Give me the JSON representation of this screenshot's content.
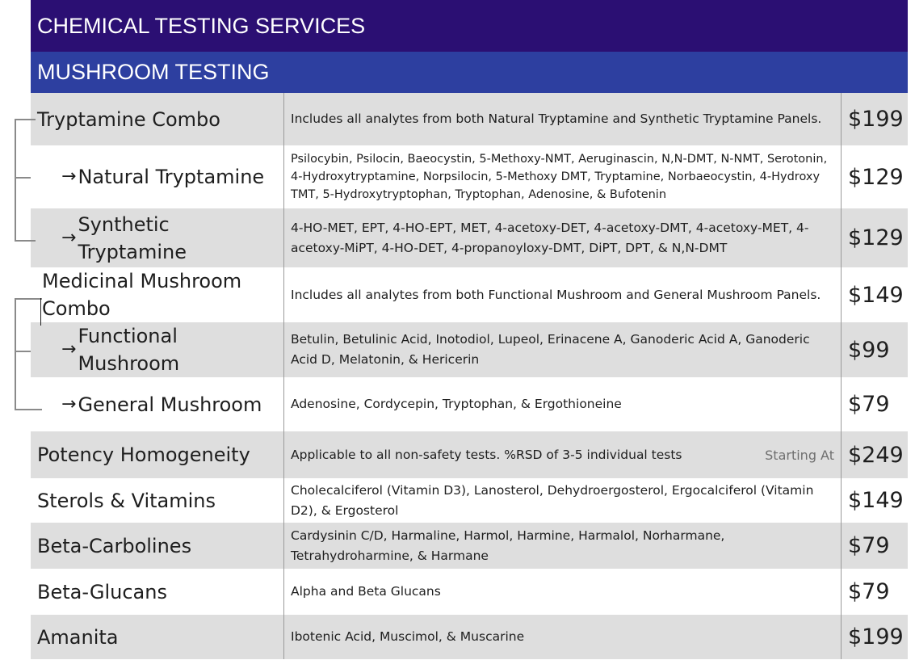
{
  "header": {
    "title": "CHEMICAL TESTING SERVICES",
    "subtitle": "MUSHROOM TESTING"
  },
  "arrow_glyph": "→",
  "rows": [
    {
      "name": "Tryptamine Combo",
      "desc": "Includes all analytes from both Natural Tryptamine and Synthetic Tryptamine Panels.",
      "price": "$199"
    },
    {
      "name": "Natural Tryptamine",
      "desc": "Psilocybin, Psilocin, Baeocystin, 5-Methoxy-NMT, Aeruginascin, N,N-DMT, N-NMT, Serotonin, 4-Hydroxytryptamine, Norpsilocin, 5-Methoxy DMT, Tryptamine, Norbaeocystin, 4-Hydroxy TMT, 5-Hydroxytryptophan, Tryptophan, Adenosine, & Bufotenin",
      "price": "$129"
    },
    {
      "name": "Synthetic Tryptamine",
      "desc": "4-HO-MET, EPT, 4-HO-EPT, MET, 4-acetoxy-DET, 4-acetoxy-DMT, 4-acetoxy-MET, 4-acetoxy-MiPT, 4-HO-DET, 4-propanoyloxy-DMT, DiPT, DPT, & N,N-DMT",
      "price": "$129"
    },
    {
      "name": "Medicinal Mushroom Combo",
      "desc": "Includes all analytes from both Functional Mushroom and General Mushroom Panels.",
      "price": "$149"
    },
    {
      "name": "Functional Mushroom",
      "desc": "Betulin, Betulinic Acid, Inotodiol, Lupeol, Erinacene A, Ganoderic Acid A, Ganoderic Acid D, Melatonin, & Hericerin",
      "price": "$99"
    },
    {
      "name": "General Mushroom",
      "desc": "Adenosine, Cordycepin, Tryptophan, & Ergothioneine",
      "price": "$79"
    },
    {
      "name": "Potency Homogeneity",
      "desc": "Applicable to all non-safety tests. %RSD of 3-5 individual tests",
      "note": "Starting At",
      "price": "$249"
    },
    {
      "name": "Sterols & Vitamins",
      "desc": "Cholecalciferol (Vitamin D3), Lanosterol, Dehydroergosterol, Ergocalciferol (Vitamin D2), & Ergosterol",
      "price": "$149"
    },
    {
      "name": "Beta-Carbolines",
      "desc": "Cardysinin C/D, Harmaline, Harmol, Harmine, Harmalol, Norharmane, Tetrahydroharmine, & Harmane",
      "price": "$79"
    },
    {
      "name": "Beta-Glucans",
      "desc": "Alpha and Beta Glucans",
      "price": "$79"
    },
    {
      "name": "Amanita",
      "desc": "Ibotenic Acid, Muscimol, & Muscarine",
      "price": "$199"
    }
  ]
}
